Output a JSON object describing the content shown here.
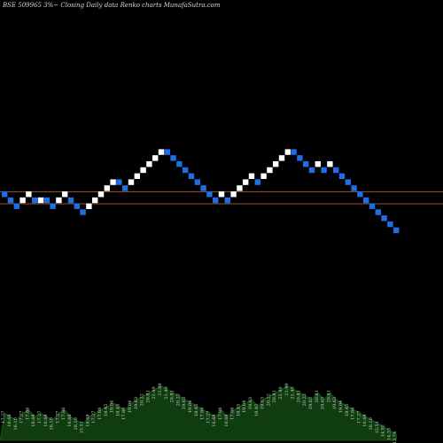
{
  "chart_data": {
    "type": "renko",
    "title": "BSE 509965 3%~  Closing Daily data  Renko  charts MunafaSutra.com",
    "colors": {
      "up": "#ffffff",
      "down": "#1e6fe6",
      "reference_line": "#a0522d",
      "volume_area": "#0f3d0f",
      "volume_label": "#cfcfcf",
      "background": "#000000"
    },
    "reference_lines": [
      17.28,
      16.1
    ],
    "bricks": [
      {
        "close": 17.27,
        "dir": "down"
      },
      {
        "close": 16.68,
        "dir": "down"
      },
      {
        "close": 16.1,
        "dir": "down"
      },
      {
        "close": 17.27,
        "dir": "up"
      },
      {
        "close": 17.86,
        "dir": "up"
      },
      {
        "close": 16.68,
        "dir": "down"
      },
      {
        "close": 17.27,
        "dir": "up"
      },
      {
        "close": 16.68,
        "dir": "down"
      },
      {
        "close": 16.1,
        "dir": "down"
      },
      {
        "close": 17.27,
        "dir": "up"
      },
      {
        "close": 17.86,
        "dir": "up"
      },
      {
        "close": 16.68,
        "dir": "down"
      },
      {
        "close": 16.1,
        "dir": "down"
      },
      {
        "close": 15.51,
        "dir": "down"
      },
      {
        "close": 16.68,
        "dir": "up"
      },
      {
        "close": 17.27,
        "dir": "up"
      },
      {
        "close": 17.86,
        "dir": "up"
      },
      {
        "close": 18.45,
        "dir": "up"
      },
      {
        "close": 19.04,
        "dir": "up"
      },
      {
        "close": 18.45,
        "dir": "down"
      },
      {
        "close": 17.86,
        "dir": "down"
      },
      {
        "close": 19.04,
        "dir": "up"
      },
      {
        "close": 19.63,
        "dir": "up"
      },
      {
        "close": 20.22,
        "dir": "up"
      },
      {
        "close": 20.81,
        "dir": "up"
      },
      {
        "close": 21.4,
        "dir": "up"
      },
      {
        "close": 21.99,
        "dir": "up"
      },
      {
        "close": 21.4,
        "dir": "down"
      },
      {
        "close": 20.81,
        "dir": "down"
      },
      {
        "close": 20.22,
        "dir": "down"
      },
      {
        "close": 19.63,
        "dir": "down"
      },
      {
        "close": 19.04,
        "dir": "down"
      },
      {
        "close": 18.45,
        "dir": "down"
      },
      {
        "close": 17.86,
        "dir": "down"
      },
      {
        "close": 17.27,
        "dir": "down"
      },
      {
        "close": 16.68,
        "dir": "down"
      },
      {
        "close": 17.86,
        "dir": "up"
      },
      {
        "close": 16.68,
        "dir": "down"
      },
      {
        "close": 17.86,
        "dir": "up"
      },
      {
        "close": 18.45,
        "dir": "up"
      },
      {
        "close": 19.04,
        "dir": "up"
      },
      {
        "close": 19.63,
        "dir": "up"
      },
      {
        "close": 18.45,
        "dir": "down"
      },
      {
        "close": 19.63,
        "dir": "up"
      },
      {
        "close": 20.22,
        "dir": "up"
      },
      {
        "close": 20.81,
        "dir": "up"
      },
      {
        "close": 21.4,
        "dir": "up"
      },
      {
        "close": 21.99,
        "dir": "up"
      },
      {
        "close": 21.4,
        "dir": "down"
      },
      {
        "close": 20.81,
        "dir": "down"
      },
      {
        "close": 20.22,
        "dir": "down"
      },
      {
        "close": 19.63,
        "dir": "down"
      },
      {
        "close": 20.81,
        "dir": "up"
      },
      {
        "close": 19.63,
        "dir": "down"
      },
      {
        "close": 20.81,
        "dir": "up"
      },
      {
        "close": 19.63,
        "dir": "down"
      },
      {
        "close": 19.04,
        "dir": "down"
      },
      {
        "close": 18.45,
        "dir": "down"
      },
      {
        "close": 17.86,
        "dir": "down"
      },
      {
        "close": 17.27,
        "dir": "down"
      },
      {
        "close": 16.68,
        "dir": "down"
      },
      {
        "close": 16.1,
        "dir": "down"
      },
      {
        "close": 15.51,
        "dir": "down"
      },
      {
        "close": 14.92,
        "dir": "down"
      },
      {
        "close": 14.33,
        "dir": "down"
      },
      {
        "close": 13.74,
        "dir": "down"
      }
    ]
  }
}
